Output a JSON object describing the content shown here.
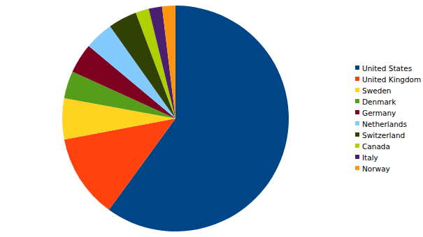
{
  "chart_data": {
    "type": "pie",
    "categories": [
      "United States",
      "United Kingdom",
      "Sweden",
      "Denmark",
      "Germany",
      "Netherlands",
      "Switzerland",
      "Canada",
      "Italy",
      "Norway"
    ],
    "values": [
      60,
      12,
      5.9,
      3.9,
      4.3,
      4.1,
      4.1,
      1.9,
      1.9,
      1.9
    ],
    "colors": [
      "#004586",
      "#ff420e",
      "#ffd320",
      "#579d1c",
      "#7e0021",
      "#83caff",
      "#314004",
      "#aecf00",
      "#4b1f6f",
      "#ff950e"
    ],
    "legend": "right"
  }
}
